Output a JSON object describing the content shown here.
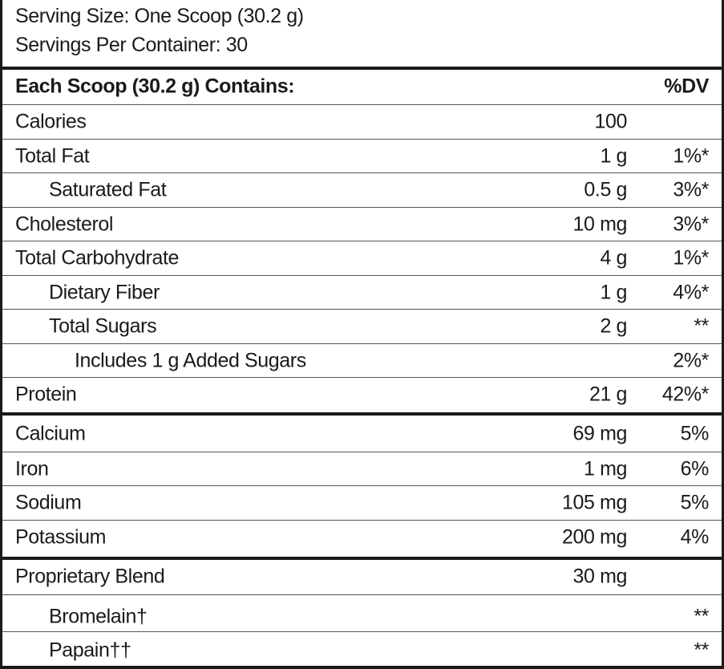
{
  "serving": {
    "size": "Serving Size: One Scoop (30.2 g)",
    "per_container": "Servings Per Container: 30"
  },
  "header": {
    "contains": "Each Scoop (30.2 g) Contains:",
    "dv": "%DV"
  },
  "nutrients": [
    {
      "name": "Calories",
      "amount": "100",
      "dv": ""
    },
    {
      "name": "Total Fat",
      "amount": "1 g",
      "dv": "1%*"
    },
    {
      "name": "Saturated Fat",
      "amount": "0.5 g",
      "dv": "3%*"
    },
    {
      "name": "Cholesterol",
      "amount": "10 mg",
      "dv": "3%*"
    },
    {
      "name": "Total Carbohydrate",
      "amount": "4 g",
      "dv": "1%*"
    },
    {
      "name": "Dietary Fiber",
      "amount": "1 g",
      "dv": "4%*"
    },
    {
      "name": "Total Sugars",
      "amount": "2 g",
      "dv": "**"
    },
    {
      "name": "Includes 1 g Added Sugars",
      "amount": "",
      "dv": "2%*"
    },
    {
      "name": "Protein",
      "amount": "21 g",
      "dv": "42%*"
    }
  ],
  "minerals": [
    {
      "name": "Calcium",
      "amount": "69 mg",
      "dv": "5%"
    },
    {
      "name": "Iron",
      "amount": "1 mg",
      "dv": "6%"
    },
    {
      "name": "Sodium",
      "amount": "105 mg",
      "dv": "5%"
    },
    {
      "name": "Potassium",
      "amount": "200 mg",
      "dv": "4%"
    }
  ],
  "blend": [
    {
      "name": "Proprietary Blend",
      "amount": "30 mg",
      "dv": ""
    },
    {
      "name": "Bromelain†",
      "amount": "",
      "dv": "**"
    },
    {
      "name": "Papain††",
      "amount": "",
      "dv": "**"
    }
  ]
}
